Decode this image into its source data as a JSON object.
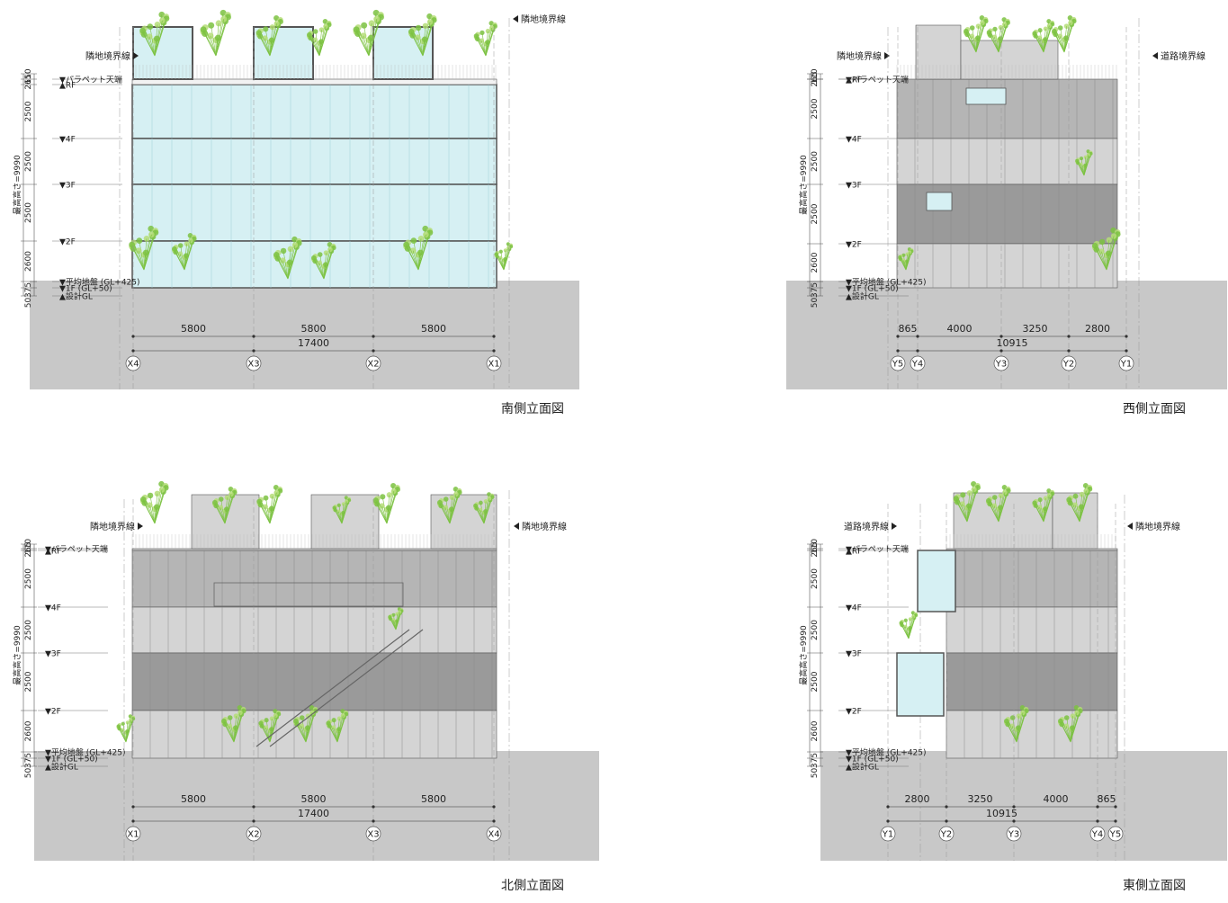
{
  "colors": {
    "ground": "#c8c8c8",
    "glass": "#d6f0f3",
    "glass_edge": "#9fd0d8",
    "panel_dark": "#9a9a9a",
    "panel_mid": "#b5b5b5",
    "panel_light": "#d4d4d4",
    "frame": "#555555",
    "plant": "#7cc242",
    "plant_light": "#b5dd78"
  },
  "elevations": [
    {
      "key": "south",
      "title": "南側立面図",
      "left_boundary": "隣地境界線",
      "right_boundary": "隣地境界線",
      "levels": {
        "parapet": "▼パラペット天端",
        "rf": "▲RF",
        "f4": "▼4F",
        "f3": "▼3F",
        "f2": "▼2F",
        "avg": "▼平均地盤 (GL+425)",
        "f1": "▼1F (GL+50)",
        "gl": "▲設計GL"
      },
      "vdims": {
        "d110": "110",
        "d265": "265",
        "d2500a": "2500",
        "d2500b": "2500",
        "d2500c": "2500",
        "d2600": "2600",
        "d50": "50",
        "d375": "375",
        "max_height": "最高高さ=9990"
      },
      "spans": [
        "5800",
        "5800",
        "5800"
      ],
      "total": "17400",
      "grid": [
        "X4",
        "X3",
        "X2",
        "X1"
      ]
    },
    {
      "key": "west",
      "title": "西側立面図",
      "left_boundary": "隣地境界線",
      "right_boundary": "道路境界線",
      "levels": {
        "parapet": "▼パラペット天端",
        "rf": "▲RF",
        "f4": "▼4F",
        "f3": "▼3F",
        "f2": "▼2F",
        "avg": "▼平均地盤 (GL+425)",
        "f1": "▼1F (GL+50)",
        "gl": "▲設計GL"
      },
      "vdims": {
        "d110": "110",
        "d265": "265",
        "d2500a": "2500",
        "d2500b": "2500",
        "d2500c": "2500",
        "d2600": "2600",
        "d50": "50",
        "d375": "375",
        "max_height": "最高高さ=9990"
      },
      "spans": [
        "865",
        "4000",
        "3250",
        "2800"
      ],
      "total": "10915",
      "grid": [
        "Y5",
        "Y4",
        "Y3",
        "Y2",
        "Y1"
      ]
    },
    {
      "key": "north",
      "title": "北側立面図",
      "left_boundary": "隣地境界線",
      "right_boundary": "隣地境界線",
      "levels": {
        "parapet": "▼パラペット天端",
        "rf": "▲RF",
        "f4": "▼4F",
        "f3": "▼3F",
        "f2": "▼2F",
        "avg": "▼平均地盤 (GL+425)",
        "f1": "▼1F (GL+50)",
        "gl": "▲設計GL"
      },
      "vdims": {
        "d110": "110",
        "d265": "265",
        "d2500a": "2500",
        "d2500b": "2500",
        "d2500c": "2500",
        "d2600": "2600",
        "d50": "50",
        "d375": "375",
        "max_height": "最高高さ=9990"
      },
      "spans": [
        "5800",
        "5800",
        "5800"
      ],
      "total": "17400",
      "grid": [
        "X1",
        "X2",
        "X3",
        "X4"
      ]
    },
    {
      "key": "east",
      "title": "東側立面図",
      "left_boundary": "道路境界線",
      "right_boundary": "隣地境界線",
      "levels": {
        "parapet": "▼パラペット天端",
        "rf": "▲RF",
        "f4": "▼4F",
        "f3": "▼3F",
        "f2": "▼2F",
        "avg": "▼平均地盤 (GL+425)",
        "f1": "▼1F (GL+50)",
        "gl": "▲設計GL"
      },
      "vdims": {
        "d110": "110",
        "d265": "265",
        "d2500a": "2500",
        "d2500b": "2500",
        "d2500c": "2500",
        "d2600": "2600",
        "d50": "50",
        "d375": "375",
        "max_height": "最高高さ=9990"
      },
      "spans": [
        "2800",
        "3250",
        "4000",
        "865"
      ],
      "total": "10915",
      "grid": [
        "Y1",
        "Y2",
        "Y3",
        "Y4",
        "Y5"
      ]
    }
  ]
}
